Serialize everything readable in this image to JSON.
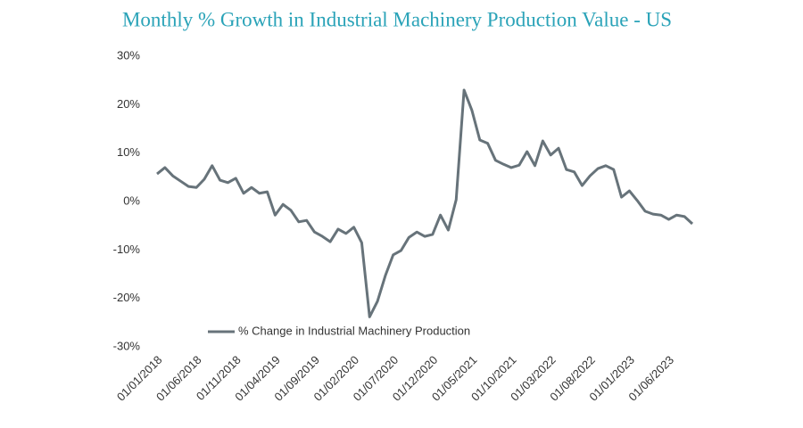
{
  "chart_data": {
    "type": "line",
    "title": "Monthly % Growth in Industrial Machinery Production Value - US",
    "categories": [
      "01/01/2018",
      null,
      null,
      null,
      null,
      "01/06/2018",
      null,
      null,
      null,
      null,
      "01/11/2018",
      null,
      null,
      null,
      null,
      "01/04/2019",
      null,
      null,
      null,
      null,
      "01/09/2019",
      null,
      null,
      null,
      null,
      "01/02/2020",
      null,
      null,
      null,
      null,
      "01/07/2020",
      null,
      null,
      null,
      null,
      "01/12/2020",
      null,
      null,
      null,
      null,
      "01/05/2021",
      null,
      null,
      null,
      null,
      "01/10/2021",
      null,
      null,
      null,
      null,
      "01/03/2022",
      null,
      null,
      null,
      null,
      "01/08/2022",
      null,
      null,
      null,
      null,
      "01/01/2023",
      null,
      null,
      null,
      null,
      "01/06/2023",
      null,
      null,
      null
    ],
    "series": [
      {
        "name": "% Change in Industrial Machinery Production",
        "color": "#67737a",
        "values": [
          5.7,
          7.0,
          5.3,
          4.2,
          3.1,
          2.9,
          4.6,
          7.4,
          4.4,
          3.9,
          4.8,
          1.7,
          2.9,
          1.7,
          2.0,
          -2.8,
          -0.6,
          -1.8,
          -4.2,
          -3.9,
          -6.3,
          -7.2,
          -8.3,
          -5.7,
          -6.6,
          -5.3,
          -8.5,
          -23.8,
          -20.6,
          -15.3,
          -11.0,
          -10.1,
          -7.4,
          -6.3,
          -7.2,
          -6.8,
          -2.8,
          -5.9,
          0.4,
          23.0,
          18.8,
          12.7,
          12.0,
          8.5,
          7.7,
          7.0,
          7.5,
          10.3,
          7.4,
          12.5,
          9.6,
          11.0,
          6.6,
          6.1,
          3.3,
          5.3,
          6.8,
          7.4,
          6.6,
          0.9,
          2.2,
          0.2,
          -2.0,
          -2.6,
          -2.8,
          -3.7,
          -2.8,
          -3.1,
          -4.6
        ]
      }
    ],
    "ylim": [
      -30,
      30
    ],
    "yticks": [
      {
        "value": -30,
        "label": "-30%"
      },
      {
        "value": -20,
        "label": "-20%"
      },
      {
        "value": -10,
        "label": "-10%"
      },
      {
        "value": 0,
        "label": "0%"
      },
      {
        "value": 10,
        "label": "10%"
      },
      {
        "value": 20,
        "label": "20%"
      },
      {
        "value": 30,
        "label": "30%"
      }
    ],
    "grid": false,
    "legend": "lower left"
  }
}
